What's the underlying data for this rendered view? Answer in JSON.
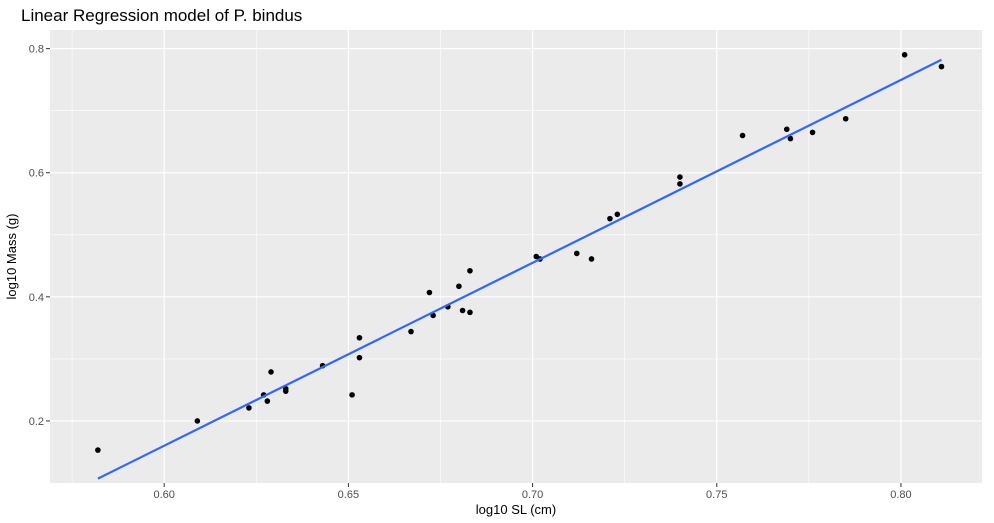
{
  "chart_data": {
    "type": "scatter",
    "title": "Linear Regression model of P. bindus",
    "xlabel": "log10 SL (cm)",
    "ylabel": "log10 Mass (g)",
    "xlim": [
      0.569,
      0.822
    ],
    "ylim": [
      0.1,
      0.83
    ],
    "x_ticks": [
      0.6,
      0.65,
      0.7,
      0.75,
      0.8
    ],
    "x_tick_labels": [
      "0.60",
      "0.65",
      "0.70",
      "0.75",
      "0.80"
    ],
    "y_ticks": [
      0.2,
      0.4,
      0.6,
      0.8
    ],
    "y_tick_labels": [
      "0.2",
      "0.4",
      "0.6",
      "0.8"
    ],
    "grid": true,
    "background": "#ebebeb",
    "point_color": "#000000",
    "line_color": "#3366ff",
    "points": [
      {
        "x": 0.582,
        "y": 0.153
      },
      {
        "x": 0.609,
        "y": 0.2
      },
      {
        "x": 0.623,
        "y": 0.221
      },
      {
        "x": 0.627,
        "y": 0.242
      },
      {
        "x": 0.628,
        "y": 0.232
      },
      {
        "x": 0.629,
        "y": 0.279
      },
      {
        "x": 0.633,
        "y": 0.252
      },
      {
        "x": 0.633,
        "y": 0.248
      },
      {
        "x": 0.643,
        "y": 0.289
      },
      {
        "x": 0.651,
        "y": 0.242
      },
      {
        "x": 0.653,
        "y": 0.334
      },
      {
        "x": 0.653,
        "y": 0.302
      },
      {
        "x": 0.667,
        "y": 0.344
      },
      {
        "x": 0.672,
        "y": 0.407
      },
      {
        "x": 0.673,
        "y": 0.37
      },
      {
        "x": 0.677,
        "y": 0.384
      },
      {
        "x": 0.68,
        "y": 0.417
      },
      {
        "x": 0.681,
        "y": 0.378
      },
      {
        "x": 0.683,
        "y": 0.442
      },
      {
        "x": 0.683,
        "y": 0.375
      },
      {
        "x": 0.701,
        "y": 0.465
      },
      {
        "x": 0.702,
        "y": 0.461
      },
      {
        "x": 0.712,
        "y": 0.47
      },
      {
        "x": 0.716,
        "y": 0.461
      },
      {
        "x": 0.721,
        "y": 0.526
      },
      {
        "x": 0.723,
        "y": 0.533
      },
      {
        "x": 0.74,
        "y": 0.593
      },
      {
        "x": 0.74,
        "y": 0.582
      },
      {
        "x": 0.757,
        "y": 0.66
      },
      {
        "x": 0.769,
        "y": 0.67
      },
      {
        "x": 0.77,
        "y": 0.655
      },
      {
        "x": 0.776,
        "y": 0.665
      },
      {
        "x": 0.785,
        "y": 0.687
      },
      {
        "x": 0.801,
        "y": 0.79
      },
      {
        "x": 0.811,
        "y": 0.771
      }
    ],
    "fit_line": {
      "x": [
        0.582,
        0.811
      ],
      "y": [
        0.107,
        0.782
      ]
    }
  }
}
